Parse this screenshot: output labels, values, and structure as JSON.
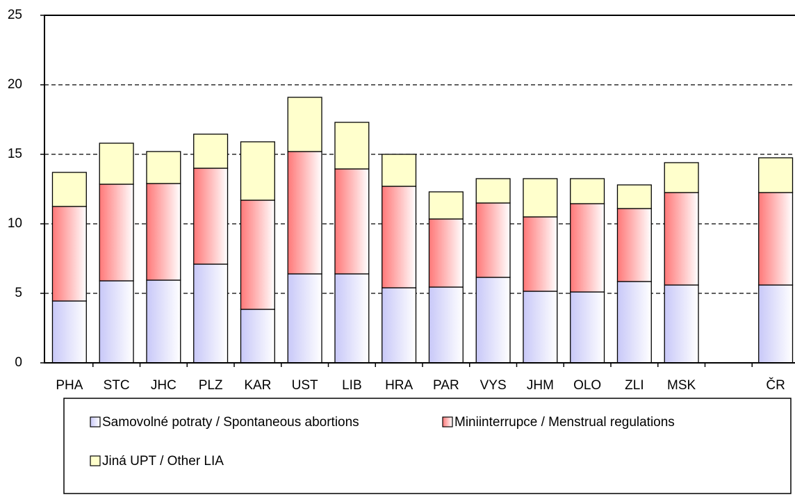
{
  "chart_data": {
    "type": "bar",
    "stacked": true,
    "categories": [
      "PHA",
      "STC",
      "JHC",
      "PLZ",
      "KAR",
      "UST",
      "LIB",
      "HRA",
      "PAR",
      "VYS",
      "JHM",
      "OLO",
      "ZLI",
      "MSK",
      null,
      "ČR"
    ],
    "series": [
      {
        "name": "Samovolné potraty / Spontaneous abortions",
        "color": "#c8c8f8",
        "values": [
          4.45,
          5.9,
          5.95,
          7.1,
          3.85,
          6.4,
          6.4,
          5.4,
          5.45,
          6.15,
          5.15,
          5.1,
          5.85,
          5.6,
          null,
          5.6
        ]
      },
      {
        "name": "Miniinterrupce / Menstrual regulations",
        "color": "#ff7878",
        "values": [
          6.8,
          6.95,
          6.95,
          6.9,
          7.85,
          8.8,
          7.55,
          7.3,
          4.9,
          5.35,
          5.35,
          6.35,
          5.25,
          6.65,
          null,
          6.65
        ]
      },
      {
        "name": "Jiná UPT / Other LIA",
        "color": "#ffffcc",
        "values": [
          2.45,
          2.95,
          2.3,
          2.45,
          4.2,
          3.9,
          3.35,
          2.3,
          1.95,
          1.75,
          2.75,
          1.8,
          1.7,
          2.15,
          null,
          2.5
        ]
      }
    ],
    "ylim": [
      0,
      25
    ],
    "yticks": [
      0,
      5,
      10,
      15,
      20,
      25
    ],
    "grid": true,
    "legend": "bottom"
  }
}
